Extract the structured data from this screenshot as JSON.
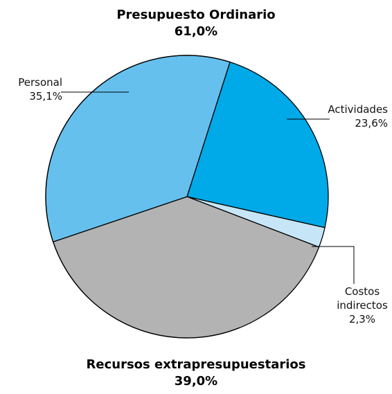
{
  "chart_data": {
    "type": "pie",
    "group": {
      "name": "Presupuesto Ordinario",
      "value": 61.0,
      "value_label": "61,0%"
    },
    "categories": [
      "Actividades",
      "Costos indirectos",
      "Recursos extrapresupuestarios",
      "Personal"
    ],
    "values": [
      23.6,
      2.3,
      39.0,
      35.1
    ],
    "value_labels": [
      "23,6%",
      "2,3%",
      "39,0%",
      "35,1%"
    ],
    "colors": [
      "#00a9e8",
      "#c6e6f8",
      "#b3b3b3",
      "#66c0ee"
    ]
  }
}
